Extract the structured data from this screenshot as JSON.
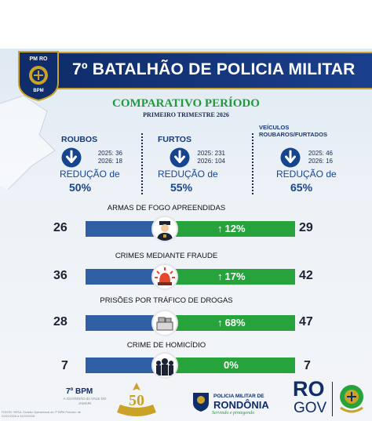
{
  "header": {
    "title": "7º BATALHÃO DE POLICIA MILITAR",
    "badge_text": "PM RO",
    "badge_bottom": "BPM"
  },
  "period": {
    "title": "COMPARATIVO PERÍODO",
    "subtitle": "PRIMEIRO TRIMESTRE 2026"
  },
  "summary": [
    {
      "title": "ROUBOS",
      "y2025": "2025: 36",
      "y2026": "2026: 18",
      "reduction_label": "REDUÇÃO de",
      "reduction_pct": "50%"
    },
    {
      "title": "FURTOS",
      "y2025": "2025: 231",
      "y2026": "2026: 104",
      "reduction_label": "REDUÇÃO de",
      "reduction_pct": "55%"
    },
    {
      "title": "VEÍCULOS ROUBAROS/FURTADOS",
      "y2025": "2025: 46",
      "y2026": "2026: 16",
      "reduction_label": "REDUÇÃO de",
      "reduction_pct": "65%"
    }
  ],
  "rows": [
    {
      "title": "ARMAS DE FOGO APREENDIDAS",
      "left": "26",
      "right": "29",
      "pct": "12%",
      "arrow": "↑",
      "icon": "police-officer-icon"
    },
    {
      "title": "CRIMES MEDIANTE FRAUDE",
      "left": "36",
      "right": "42",
      "pct": "17%",
      "arrow": "↑",
      "icon": "siren-icon"
    },
    {
      "title": "PRISÕES POR TRÁFICO DE DROGAS",
      "left": "28",
      "right": "47",
      "pct": "68%",
      "arrow": "↑",
      "icon": "drug-seizure-icon"
    },
    {
      "title": "CRIME DE HOMICÍDIO",
      "left": "7",
      "right": "7",
      "pct": "0%",
      "arrow": "",
      "icon": "crowd-icon"
    }
  ],
  "footer": {
    "bpm": "7º BPM",
    "bpm_fine": "A GUARDIÃO do VALE DO JAMARI",
    "source": "FONTE: SESA. Divisão Operacional do 7º BPM Período: de 01/01/2026 a 31/03/2026",
    "pm_line1": "POLICIA MILITAR DE",
    "pm_line2": "RONDÔNIA",
    "pm_motto": "Servindo e protegendo",
    "ro": "RO",
    "gov": "GOV",
    "anniversary": "50"
  },
  "colors": {
    "navy": "#0f2d6b",
    "blue_bar": "#2f5fa5",
    "green_bar": "#27a33c",
    "green_title": "#1f9a3a",
    "gold": "#c9a227"
  }
}
